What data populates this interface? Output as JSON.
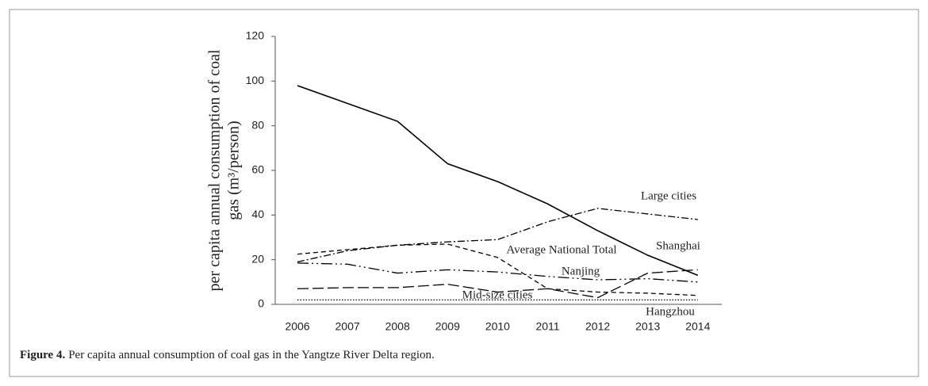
{
  "chart_data": {
    "type": "line",
    "figure_label": "Figure 4.",
    "caption": "Per capita annual consumption of coal gas in the Yangtze River Delta region.",
    "ylabel": [
      "per capita annual consumption of coal",
      "gas (m³/person)"
    ],
    "categories": [
      "2006",
      "2007",
      "2008",
      "2009",
      "2010",
      "2011",
      "2012",
      "2013",
      "2014"
    ],
    "ylim": [
      0,
      120
    ],
    "yticks": [
      0,
      20,
      40,
      60,
      80,
      100,
      120
    ],
    "series": [
      {
        "name": "Shanghai",
        "color": "#000000",
        "dash": "solid",
        "values": [
          98,
          90,
          82,
          63,
          55,
          45,
          33,
          22,
          13
        ]
      },
      {
        "name": "Large cities",
        "color": "#000000",
        "dash": "dash-dot",
        "values": [
          19,
          24,
          26.5,
          28,
          29,
          37,
          43,
          40.5,
          38
        ]
      },
      {
        "name": "Average National Total",
        "color": "#000000",
        "dash": "dashed",
        "values": [
          22.5,
          24.5,
          26.5,
          27,
          21,
          7,
          5.5,
          5,
          4
        ]
      },
      {
        "name": "Nanjing",
        "color": "#000000",
        "dash": "dash-dot-dot",
        "values": [
          18.5,
          18,
          14,
          15.5,
          14.5,
          12.5,
          11,
          11.5,
          10
        ]
      },
      {
        "name": "Hangzhou",
        "color": "#000000",
        "dash": "long-dash",
        "values": [
          7,
          7.5,
          7.5,
          9,
          5.5,
          7,
          3,
          14,
          15.5
        ]
      },
      {
        "name": "Mid-size cities",
        "color": "#000000",
        "dash": "dotted",
        "values": [
          2,
          2,
          2,
          2,
          2,
          2,
          2,
          2,
          2
        ]
      }
    ]
  }
}
